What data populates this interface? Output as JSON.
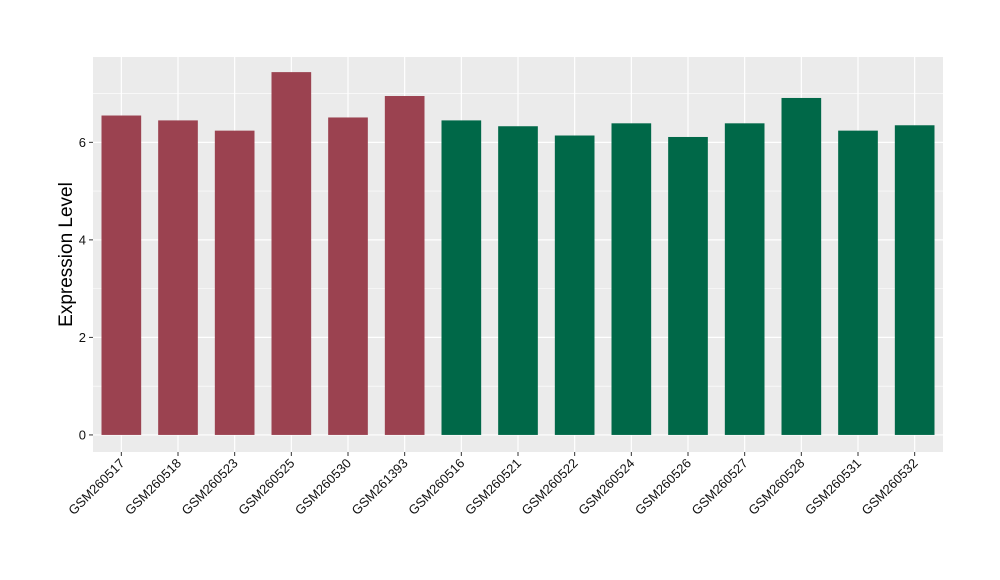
{
  "chart_data": {
    "type": "bar",
    "title": "",
    "xlabel": "",
    "ylabel": "Expression Level",
    "ylim": [
      -0.35,
      7.75
    ],
    "yticks": [
      0,
      2,
      4,
      6
    ],
    "grid": true,
    "categories": [
      "GSM260517",
      "GSM260518",
      "GSM260523",
      "GSM260525",
      "GSM260530",
      "GSM261393",
      "GSM260516",
      "GSM260521",
      "GSM260522",
      "GSM260524",
      "GSM260526",
      "GSM260527",
      "GSM260528",
      "GSM260531",
      "GSM260532"
    ],
    "values": [
      6.55,
      6.45,
      6.24,
      7.44,
      6.51,
      6.95,
      6.45,
      6.33,
      6.14,
      6.39,
      6.11,
      6.39,
      6.91,
      6.24,
      6.35
    ],
    "groups": [
      0,
      0,
      0,
      0,
      0,
      0,
      1,
      1,
      1,
      1,
      1,
      1,
      1,
      1,
      1
    ],
    "colors": {
      "group_colors": [
        "#9b4250",
        "#006848"
      ],
      "panel_background": "#ebebeb",
      "grid_line": "#ffffff"
    }
  }
}
